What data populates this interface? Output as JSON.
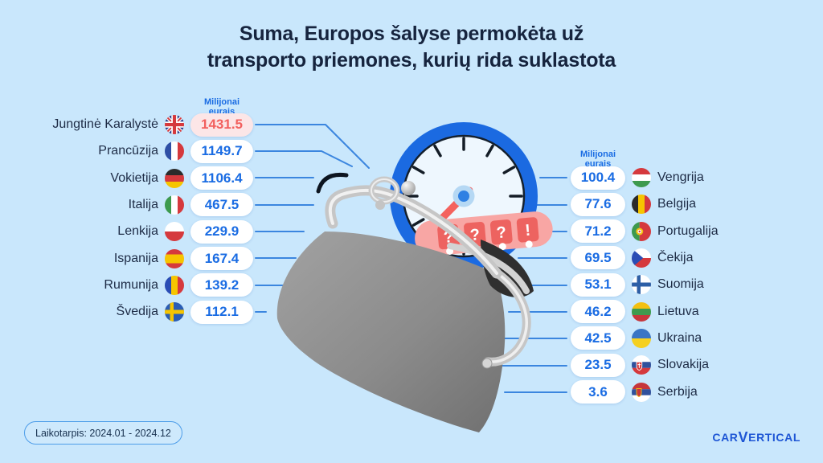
{
  "title": {
    "line1": "Suma, Europos šalyse permokėta už",
    "line2": "transporto priemones, kurių rida suklastota"
  },
  "unit_label": "Milijonai eurais",
  "left_column": {
    "header": "Milijonai eurais",
    "items": [
      {
        "label": "Jungtinė Karalystė",
        "value": "1431.5",
        "flag": "gb",
        "highlighted": true
      },
      {
        "label": "Prancūzija",
        "value": "1149.7",
        "flag": "fr",
        "highlighted": false
      },
      {
        "label": "Vokietija",
        "value": "1106.4",
        "flag": "de",
        "highlighted": false
      },
      {
        "label": "Italija",
        "value": "467.5",
        "flag": "it",
        "highlighted": false
      },
      {
        "label": "Lenkija",
        "value": "229.9",
        "flag": "pl",
        "highlighted": false
      },
      {
        "label": "Ispanija",
        "value": "167.4",
        "flag": "es",
        "highlighted": false
      },
      {
        "label": "Rumunija",
        "value": "139.2",
        "flag": "ro",
        "highlighted": false
      },
      {
        "label": "Švedija",
        "value": "112.1",
        "flag": "se",
        "highlighted": false
      }
    ]
  },
  "right_column": {
    "header": "Milijonai eurais",
    "items": [
      {
        "label": "Vengrija",
        "value": "100.4",
        "flag": "hu"
      },
      {
        "label": "Belgija",
        "value": "77.6",
        "flag": "be"
      },
      {
        "label": "Portugalija",
        "value": "71.2",
        "flag": "pt"
      },
      {
        "label": "Čekija",
        "value": "69.5",
        "flag": "cz"
      },
      {
        "label": "Suomija",
        "value": "53.1",
        "flag": "fi"
      },
      {
        "label": "Lietuva",
        "value": "46.2",
        "flag": "lt"
      },
      {
        "label": "Ukraina",
        "value": "42.5",
        "flag": "ua"
      },
      {
        "label": "Slovakija",
        "value": "23.5",
        "flag": "sk"
      },
      {
        "label": "Serbija",
        "value": "3.6",
        "flag": "rs"
      }
    ]
  },
  "illustration": {
    "odometer_symbols": [
      "?",
      "?",
      "?",
      "!"
    ]
  },
  "footer": {
    "period_label": "Laikotarpis: 2024.01 - 2024.12",
    "logo": {
      "part1": "CAR",
      "v": "V",
      "part2": "ERTICAL"
    }
  },
  "colors": {
    "background": "#c9e7fc",
    "title_text": "#16243e",
    "value_blue": "#1a6ce3",
    "value_red": "#f2605e",
    "red_pill_bg": "#fce6e7",
    "connector_blue": "#3b86df",
    "speedo_ring_blue": "#1b6ae1",
    "needle_red": "#f4625e",
    "ribbon_pink": "#f8a6a4",
    "logo_blue": "#1e56d5"
  },
  "chart_data": {
    "type": "table",
    "title": "Suma, Europos šalyse permokėta už transporto priemones, kurių rida suklastota",
    "unit": "Milijonai eurais",
    "period": "2024.01 - 2024.12",
    "categories": [
      "Jungtinė Karalystė",
      "Prancūzija",
      "Vokietija",
      "Italija",
      "Lenkija",
      "Ispanija",
      "Rumunija",
      "Švedija",
      "Vengrija",
      "Belgija",
      "Portugalija",
      "Čekija",
      "Suomija",
      "Lietuva",
      "Ukraina",
      "Slovakija",
      "Serbija"
    ],
    "values": [
      1431.5,
      1149.7,
      1106.4,
      467.5,
      229.9,
      167.4,
      139.2,
      112.1,
      100.4,
      77.6,
      71.2,
      69.5,
      53.1,
      46.2,
      42.5,
      23.5,
      3.6
    ]
  }
}
